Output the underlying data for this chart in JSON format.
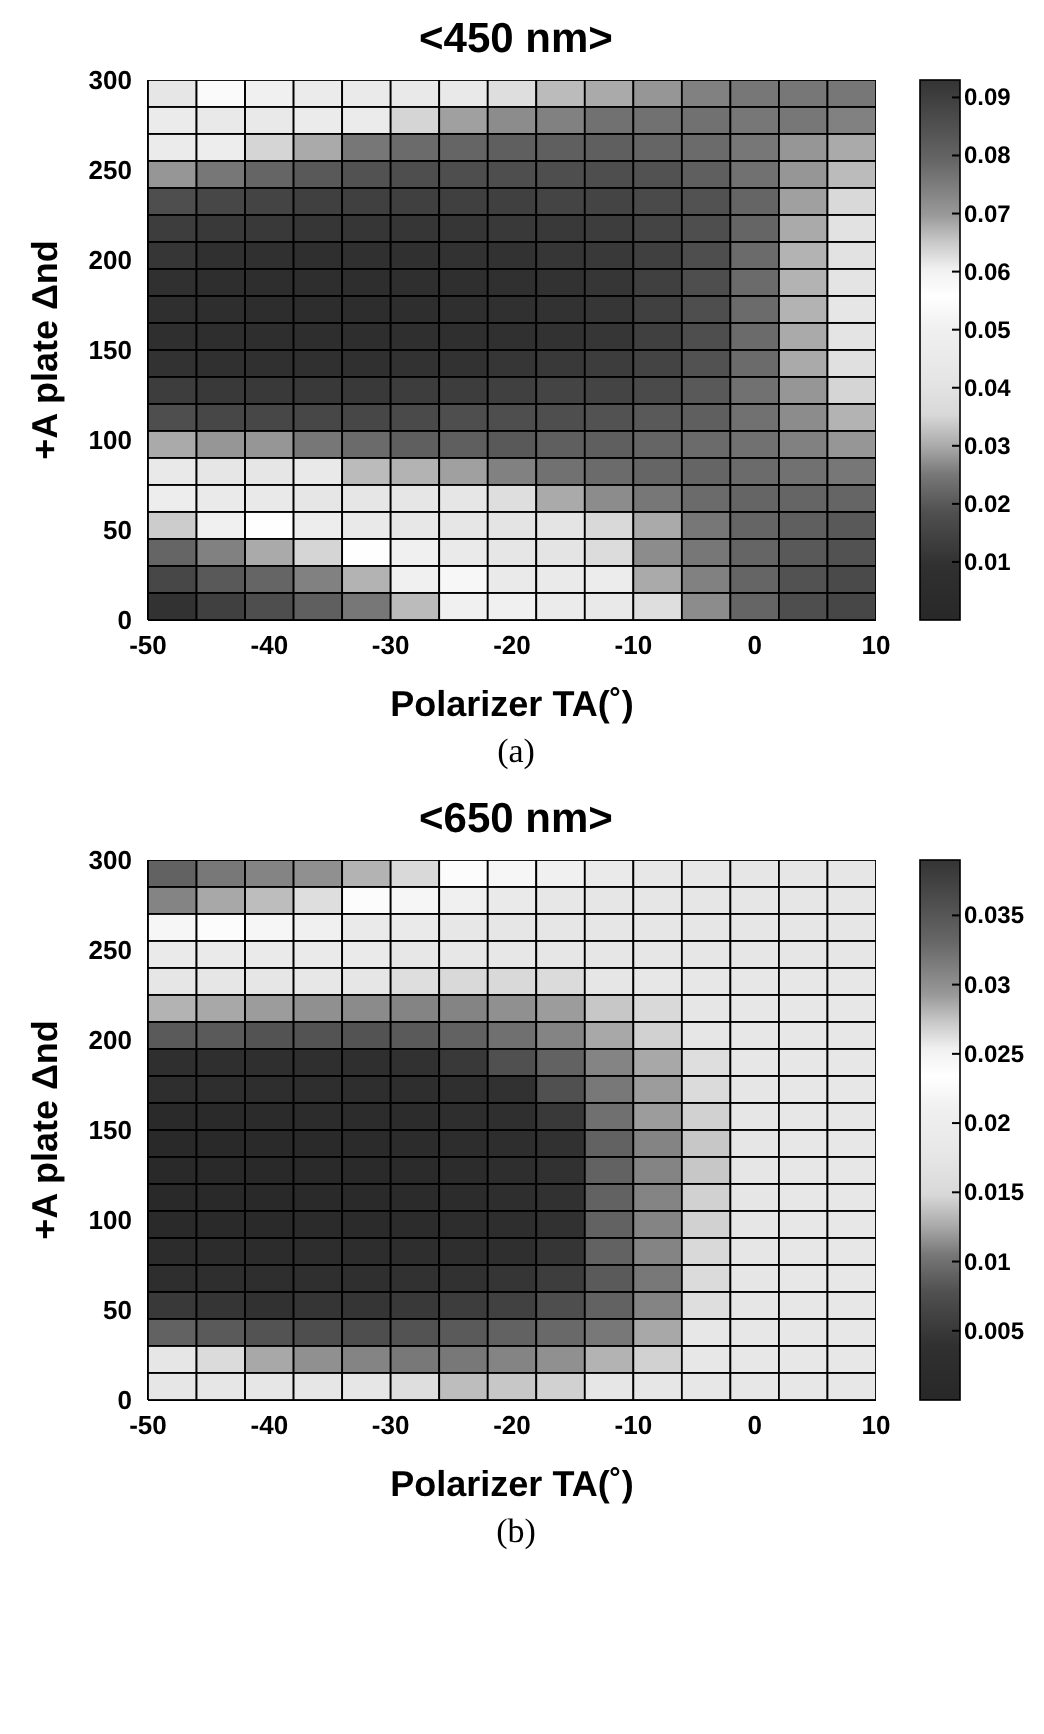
{
  "chart_data": [
    {
      "type": "heatmap",
      "title": "<450 nm>",
      "xlabel": "Polarizer TA(˚)",
      "ylabel": "+A plate Δnd",
      "annotations": [
        "(a)"
      ],
      "xlim": [
        -50,
        10
      ],
      "xticks": [
        -50,
        -40,
        -30,
        -20,
        -10,
        0,
        10
      ],
      "ylim": [
        0,
        300
      ],
      "yticks": [
        0,
        50,
        100,
        150,
        200,
        250,
        300
      ],
      "clim": [
        0,
        0.093
      ],
      "cticks": [
        0.01,
        0.02,
        0.03,
        0.04,
        0.05,
        0.06,
        0.07,
        0.08,
        0.09
      ],
      "cells": [
        [
          0.042,
          0.054,
          0.05,
          0.046,
          0.045,
          0.044,
          0.044,
          0.038,
          0.032,
          0.03,
          0.028,
          0.026,
          0.025,
          0.025,
          0.025
        ],
        [
          0.046,
          0.044,
          0.044,
          0.046,
          0.046,
          0.035,
          0.029,
          0.027,
          0.026,
          0.024,
          0.024,
          0.024,
          0.025,
          0.025,
          0.026
        ],
        [
          0.046,
          0.048,
          0.035,
          0.03,
          0.025,
          0.023,
          0.022,
          0.021,
          0.021,
          0.021,
          0.022,
          0.023,
          0.025,
          0.028,
          0.03
        ],
        [
          0.028,
          0.025,
          0.022,
          0.02,
          0.019,
          0.018,
          0.018,
          0.018,
          0.018,
          0.018,
          0.019,
          0.021,
          0.024,
          0.028,
          0.032
        ],
        [
          0.018,
          0.016,
          0.015,
          0.014,
          0.014,
          0.014,
          0.014,
          0.014,
          0.015,
          0.015,
          0.017,
          0.019,
          0.022,
          0.029,
          0.036
        ],
        [
          0.013,
          0.012,
          0.012,
          0.011,
          0.011,
          0.011,
          0.011,
          0.012,
          0.012,
          0.013,
          0.015,
          0.018,
          0.022,
          0.03,
          0.04
        ],
        [
          0.011,
          0.009,
          0.009,
          0.008,
          0.009,
          0.009,
          0.01,
          0.01,
          0.011,
          0.012,
          0.014,
          0.018,
          0.023,
          0.031,
          0.04
        ],
        [
          0.009,
          0.007,
          0.007,
          0.007,
          0.007,
          0.008,
          0.008,
          0.009,
          0.01,
          0.011,
          0.014,
          0.018,
          0.023,
          0.031,
          0.041
        ],
        [
          0.008,
          0.007,
          0.006,
          0.006,
          0.006,
          0.007,
          0.008,
          0.009,
          0.01,
          0.011,
          0.014,
          0.018,
          0.023,
          0.031,
          0.042
        ],
        [
          0.008,
          0.007,
          0.007,
          0.007,
          0.007,
          0.008,
          0.008,
          0.009,
          0.01,
          0.011,
          0.014,
          0.018,
          0.023,
          0.03,
          0.041
        ],
        [
          0.01,
          0.009,
          0.009,
          0.009,
          0.009,
          0.01,
          0.01,
          0.011,
          0.012,
          0.013,
          0.015,
          0.019,
          0.023,
          0.03,
          0.039
        ],
        [
          0.013,
          0.012,
          0.012,
          0.012,
          0.012,
          0.013,
          0.013,
          0.014,
          0.015,
          0.015,
          0.017,
          0.02,
          0.024,
          0.028,
          0.035
        ],
        [
          0.018,
          0.016,
          0.016,
          0.016,
          0.016,
          0.017,
          0.018,
          0.018,
          0.018,
          0.019,
          0.02,
          0.021,
          0.024,
          0.027,
          0.031
        ],
        [
          0.03,
          0.028,
          0.028,
          0.025,
          0.023,
          0.021,
          0.021,
          0.02,
          0.021,
          0.021,
          0.022,
          0.023,
          0.024,
          0.026,
          0.028
        ],
        [
          0.044,
          0.042,
          0.042,
          0.044,
          0.032,
          0.031,
          0.029,
          0.026,
          0.024,
          0.023,
          0.022,
          0.022,
          0.023,
          0.024,
          0.025
        ],
        [
          0.048,
          0.045,
          0.044,
          0.042,
          0.042,
          0.042,
          0.042,
          0.038,
          0.03,
          0.027,
          0.025,
          0.023,
          0.022,
          0.022,
          0.022
        ],
        [
          0.034,
          0.05,
          0.056,
          0.048,
          0.044,
          0.043,
          0.042,
          0.041,
          0.041,
          0.036,
          0.03,
          0.025,
          0.022,
          0.021,
          0.02
        ],
        [
          0.022,
          0.026,
          0.03,
          0.035,
          0.056,
          0.05,
          0.045,
          0.042,
          0.041,
          0.037,
          0.027,
          0.025,
          0.022,
          0.02,
          0.019
        ],
        [
          0.016,
          0.02,
          0.022,
          0.026,
          0.031,
          0.05,
          0.053,
          0.045,
          0.045,
          0.047,
          0.03,
          0.026,
          0.022,
          0.019,
          0.017
        ],
        [
          0.01,
          0.014,
          0.018,
          0.021,
          0.025,
          0.032,
          0.05,
          0.05,
          0.046,
          0.044,
          0.038,
          0.027,
          0.022,
          0.018,
          0.016
        ]
      ]
    },
    {
      "type": "heatmap",
      "title": "<650 nm>",
      "xlabel": "Polarizer TA(˚)",
      "ylabel": "+A plate Δnd",
      "annotations": [
        "(b)"
      ],
      "xlim": [
        -50,
        10
      ],
      "xticks": [
        -50,
        -40,
        -30,
        -20,
        -10,
        0,
        10
      ],
      "ylim": [
        0,
        300
      ],
      "yticks": [
        0,
        50,
        100,
        150,
        200,
        250,
        300
      ],
      "clim": [
        0,
        0.039
      ],
      "cticks": [
        0.005,
        0.01,
        0.015,
        0.02,
        0.025,
        0.03,
        0.035
      ],
      "cells": [
        [
          0.009,
          0.0105,
          0.011,
          0.0115,
          0.013,
          0.015,
          0.023,
          0.022,
          0.021,
          0.019,
          0.018,
          0.018,
          0.0175,
          0.0175,
          0.0175
        ],
        [
          0.011,
          0.0125,
          0.0135,
          0.016,
          0.023,
          0.022,
          0.021,
          0.019,
          0.018,
          0.0175,
          0.0175,
          0.0175,
          0.0175,
          0.0175,
          0.0175
        ],
        [
          0.022,
          0.023,
          0.022,
          0.021,
          0.019,
          0.019,
          0.018,
          0.0175,
          0.0175,
          0.0175,
          0.0175,
          0.0175,
          0.0175,
          0.0175,
          0.0175
        ],
        [
          0.019,
          0.019,
          0.019,
          0.019,
          0.019,
          0.018,
          0.018,
          0.018,
          0.0175,
          0.0175,
          0.0175,
          0.0175,
          0.0175,
          0.0175,
          0.0175
        ],
        [
          0.0175,
          0.0175,
          0.0175,
          0.018,
          0.0175,
          0.016,
          0.015,
          0.015,
          0.0155,
          0.0175,
          0.018,
          0.018,
          0.018,
          0.018,
          0.018
        ],
        [
          0.013,
          0.0125,
          0.012,
          0.0115,
          0.0113,
          0.011,
          0.011,
          0.0115,
          0.012,
          0.014,
          0.015,
          0.0175,
          0.018,
          0.018,
          0.018
        ],
        [
          0.0085,
          0.0085,
          0.008,
          0.008,
          0.008,
          0.0085,
          0.009,
          0.01,
          0.011,
          0.0125,
          0.0145,
          0.0175,
          0.018,
          0.018,
          0.018
        ],
        [
          0.0035,
          0.0035,
          0.0035,
          0.0035,
          0.0035,
          0.004,
          0.005,
          0.0078,
          0.009,
          0.011,
          0.0125,
          0.016,
          0.018,
          0.018,
          0.018
        ],
        [
          0.003,
          0.003,
          0.003,
          0.003,
          0.003,
          0.003,
          0.0035,
          0.004,
          0.0078,
          0.0105,
          0.012,
          0.0155,
          0.0175,
          0.018,
          0.018
        ],
        [
          0.001,
          0.001,
          0.0015,
          0.002,
          0.002,
          0.002,
          0.003,
          0.0035,
          0.005,
          0.01,
          0.012,
          0.0145,
          0.0175,
          0.018,
          0.018
        ],
        [
          0.0005,
          0.0005,
          0.001,
          0.001,
          0.0015,
          0.002,
          0.0025,
          0.003,
          0.004,
          0.009,
          0.011,
          0.014,
          0.0175,
          0.018,
          0.018
        ],
        [
          0.0005,
          0.0005,
          0.0005,
          0.001,
          0.001,
          0.0015,
          0.002,
          0.003,
          0.004,
          0.009,
          0.011,
          0.014,
          0.0175,
          0.018,
          0.018
        ],
        [
          0.0005,
          0.0005,
          0.0005,
          0.001,
          0.001,
          0.0015,
          0.002,
          0.003,
          0.004,
          0.009,
          0.011,
          0.0145,
          0.0175,
          0.018,
          0.018
        ],
        [
          0.001,
          0.001,
          0.001,
          0.0015,
          0.0015,
          0.002,
          0.0025,
          0.003,
          0.004,
          0.009,
          0.011,
          0.0145,
          0.0175,
          0.018,
          0.018
        ],
        [
          0.002,
          0.002,
          0.002,
          0.0025,
          0.0025,
          0.003,
          0.003,
          0.0035,
          0.0045,
          0.009,
          0.011,
          0.015,
          0.0175,
          0.018,
          0.018
        ],
        [
          0.003,
          0.003,
          0.003,
          0.0035,
          0.0035,
          0.004,
          0.004,
          0.0045,
          0.0055,
          0.0085,
          0.0105,
          0.0155,
          0.0175,
          0.018,
          0.018
        ],
        [
          0.005,
          0.0045,
          0.004,
          0.0045,
          0.0045,
          0.005,
          0.0055,
          0.006,
          0.0075,
          0.009,
          0.011,
          0.016,
          0.0175,
          0.018,
          0.018
        ],
        [
          0.009,
          0.0085,
          0.008,
          0.0075,
          0.0075,
          0.008,
          0.0085,
          0.009,
          0.0095,
          0.0105,
          0.0125,
          0.018,
          0.018,
          0.018,
          0.018
        ],
        [
          0.0175,
          0.0155,
          0.0125,
          0.0115,
          0.011,
          0.0105,
          0.0105,
          0.011,
          0.0115,
          0.013,
          0.0145,
          0.018,
          0.018,
          0.018,
          0.018
        ],
        [
          0.0175,
          0.0175,
          0.0175,
          0.0175,
          0.0175,
          0.016,
          0.0135,
          0.014,
          0.0145,
          0.0175,
          0.0175,
          0.018,
          0.018,
          0.018,
          0.018
        ]
      ]
    }
  ]
}
